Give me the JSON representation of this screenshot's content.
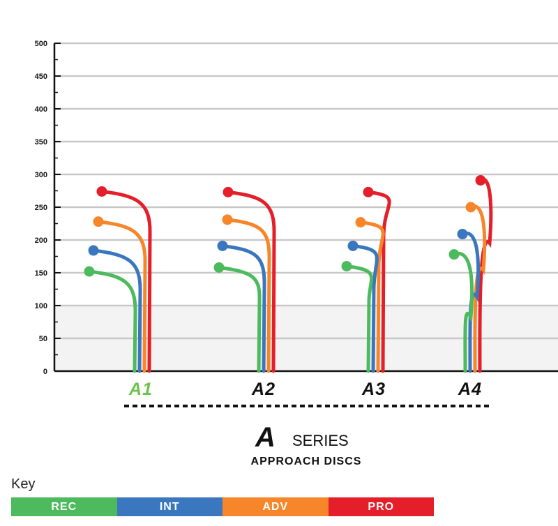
{
  "chart_data": {
    "type": "line",
    "subtitle": "APPROACH DISCS",
    "series_logo": "A",
    "series_word": "SERIES",
    "ylim": [
      0,
      500
    ],
    "yticks": [
      0,
      50,
      100,
      150,
      200,
      250,
      300,
      350,
      400,
      450,
      500
    ],
    "grid": true,
    "categories": [
      "A1",
      "A2",
      "A3",
      "A4"
    ],
    "highlight_category": "A1",
    "levels": [
      {
        "name": "REC",
        "color": "#4dba5e"
      },
      {
        "name": "INT",
        "color": "#3a77bf"
      },
      {
        "name": "ADV",
        "color": "#f7862a"
      },
      {
        "name": "PRO",
        "color": "#e41f2a"
      }
    ],
    "series": [
      {
        "disc": "A1",
        "flights": [
          152,
          184,
          228,
          274
        ]
      },
      {
        "disc": "A2",
        "flights": [
          158,
          191,
          231,
          273
        ]
      },
      {
        "disc": "A3",
        "flights": [
          160,
          191,
          227,
          273
        ]
      },
      {
        "disc": "A4",
        "flights": [
          178,
          209,
          250,
          291
        ]
      }
    ]
  },
  "key": {
    "title": "Key",
    "items": [
      {
        "label": "REC",
        "color": "#4dba5e"
      },
      {
        "label": "INT",
        "color": "#3a77bf"
      },
      {
        "label": "ADV",
        "color": "#f7862a"
      },
      {
        "label": "PRO",
        "color": "#e41f2a"
      }
    ]
  }
}
